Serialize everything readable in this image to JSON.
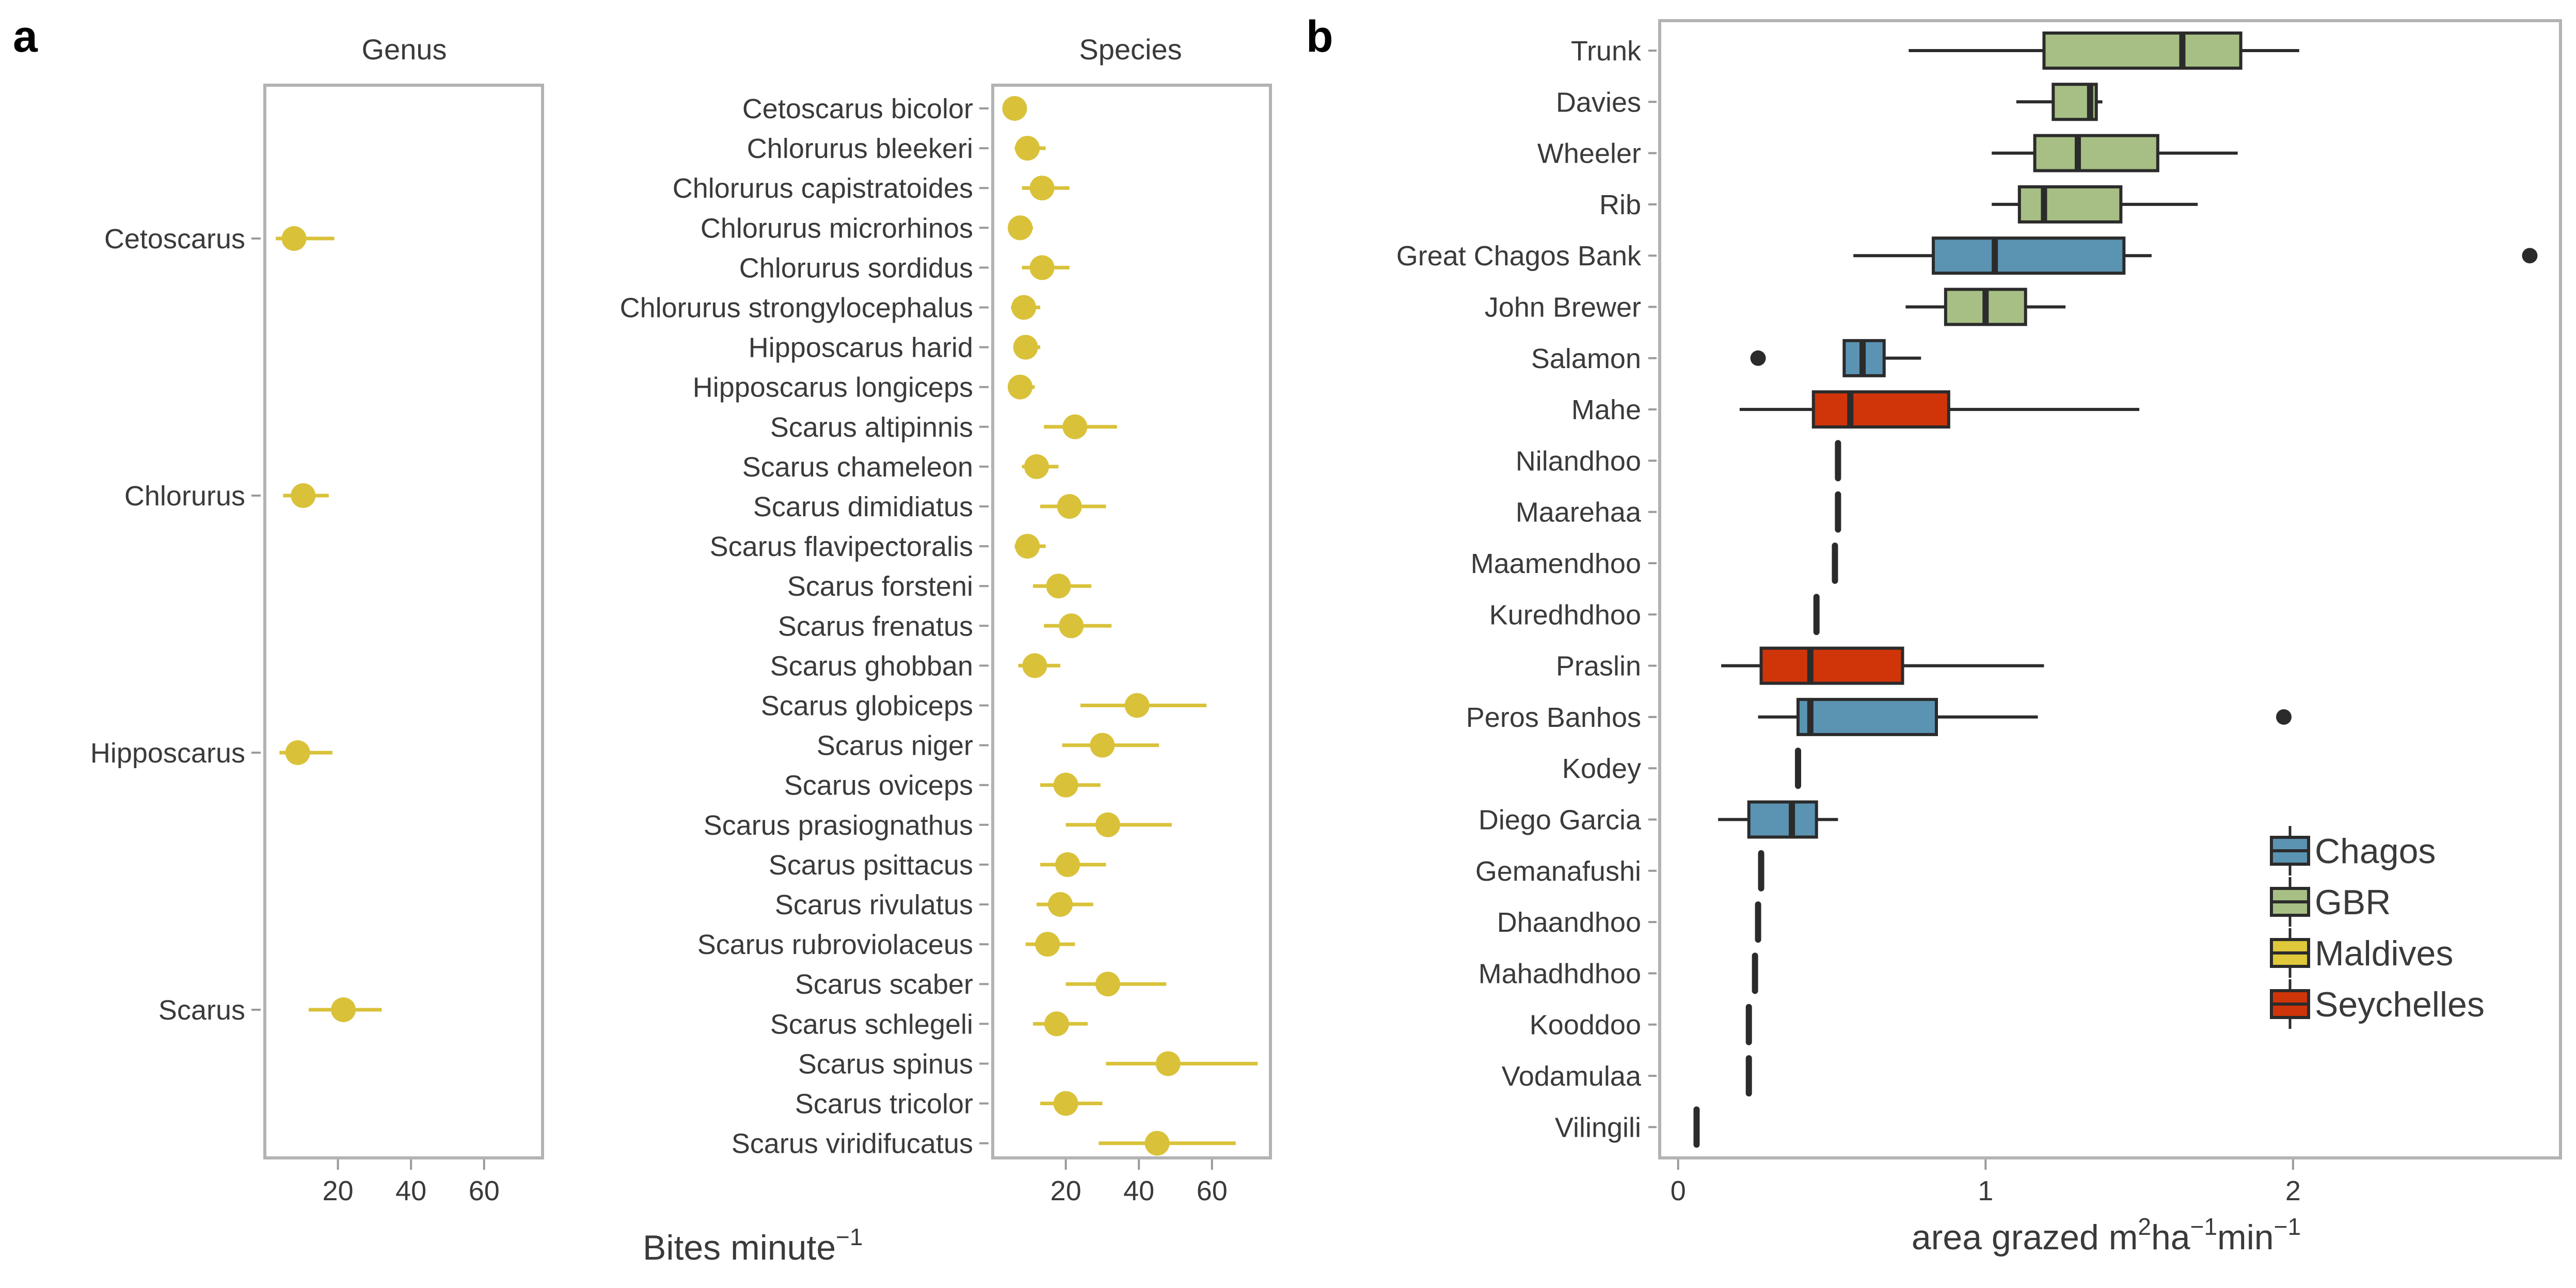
{
  "figure": {
    "panel_a_letter": "a",
    "panel_b_letter": "b",
    "shared_xlabel": {
      "main": "Bites minute",
      "sup": "−1"
    },
    "colors": {
      "dot": "#d9c23a",
      "frame": "#b3b3b3",
      "text": "#3a3a3a",
      "whisker": "#2b2b2b"
    }
  },
  "chart_data": [
    {
      "type": "scatter",
      "panel": "a",
      "title": "Genus",
      "xlabel": "",
      "ylabel": "",
      "x_ticks": [
        20,
        40,
        60
      ],
      "xlim": [
        0,
        76
      ],
      "point_color": "#d9c23a",
      "points": [
        {
          "label": "Cetoscarus",
          "mean": 8,
          "low": 3,
          "high": 19
        },
        {
          "label": "Chlorurus",
          "mean": 10.5,
          "low": 5,
          "high": 17.5
        },
        {
          "label": "Hipposcarus",
          "mean": 9,
          "low": 4,
          "high": 18.5
        },
        {
          "label": "Scarus",
          "mean": 21.5,
          "low": 12,
          "high": 32
        }
      ]
    },
    {
      "type": "scatter",
      "panel": "a",
      "title": "Species",
      "xlabel": "",
      "ylabel": "",
      "x_ticks": [
        20,
        40,
        60
      ],
      "xlim": [
        0,
        76
      ],
      "point_color": "#d9c23a",
      "points": [
        {
          "label": "Cetoscarus bicolor",
          "mean": 6,
          "low": 4,
          "high": 9
        },
        {
          "label": "Chlorurus bleekeri",
          "mean": 9.5,
          "low": 6,
          "high": 14.5
        },
        {
          "label": "Chlorurus capistratoides",
          "mean": 13.5,
          "low": 8,
          "high": 21
        },
        {
          "label": "Chlorurus microrhinos",
          "mean": 7.5,
          "low": 5,
          "high": 11
        },
        {
          "label": "Chlorurus sordidus",
          "mean": 13.5,
          "low": 8,
          "high": 21
        },
        {
          "label": "Chlorurus strongylocephalus",
          "mean": 8.5,
          "low": 5,
          "high": 13
        },
        {
          "label": "Hipposcarus harid",
          "mean": 9,
          "low": 6,
          "high": 13
        },
        {
          "label": "Hipposcarus longiceps",
          "mean": 7.5,
          "low": 5,
          "high": 11.5
        },
        {
          "label": "Scarus altipinnis",
          "mean": 22.5,
          "low": 14,
          "high": 34
        },
        {
          "label": "Scarus chameleon",
          "mean": 12,
          "low": 8,
          "high": 18
        },
        {
          "label": "Scarus dimidiatus",
          "mean": 21,
          "low": 13,
          "high": 31
        },
        {
          "label": "Scarus flavipectoralis",
          "mean": 9.5,
          "low": 6,
          "high": 14.5
        },
        {
          "label": "Scarus forsteni",
          "mean": 18,
          "low": 11,
          "high": 27
        },
        {
          "label": "Scarus frenatus",
          "mean": 21.5,
          "low": 14,
          "high": 32.5
        },
        {
          "label": "Scarus ghobban",
          "mean": 11.5,
          "low": 7,
          "high": 18.5
        },
        {
          "label": "Scarus globiceps",
          "mean": 39.5,
          "low": 24,
          "high": 58.5
        },
        {
          "label": "Scarus niger",
          "mean": 30,
          "low": 19,
          "high": 45.5
        },
        {
          "label": "Scarus oviceps",
          "mean": 20,
          "low": 13,
          "high": 29.5
        },
        {
          "label": "Scarus prasiognathus",
          "mean": 31.5,
          "low": 20,
          "high": 49
        },
        {
          "label": "Scarus psittacus",
          "mean": 20.5,
          "low": 13,
          "high": 31
        },
        {
          "label": "Scarus rivulatus",
          "mean": 18.5,
          "low": 12,
          "high": 27.5
        },
        {
          "label": "Scarus rubroviolaceus",
          "mean": 15,
          "low": 9,
          "high": 22.5
        },
        {
          "label": "Scarus scaber",
          "mean": 31.5,
          "low": 20,
          "high": 47.5
        },
        {
          "label": "Scarus schlegeli",
          "mean": 17.5,
          "low": 11,
          "high": 26
        },
        {
          "label": "Scarus spinus",
          "mean": 48,
          "low": 31,
          "high": 72.5
        },
        {
          "label": "Scarus tricolor",
          "mean": 20,
          "low": 13,
          "high": 30
        },
        {
          "label": "Scarus viridifucatus",
          "mean": 45,
          "low": 29,
          "high": 66.5
        }
      ]
    },
    {
      "type": "box",
      "panel": "b",
      "title": "",
      "xlabel": {
        "main": "area grazed m",
        "sup1": "2",
        "mid": "ha",
        "sup2": "−1",
        "end": "min",
        "sup3": "−1"
      },
      "ylabel": "",
      "x_ticks": [
        0,
        1,
        2
      ],
      "xlim": [
        -0.06,
        2.87
      ],
      "legend_position": "bottom-right",
      "legend": [
        {
          "name": "Chagos",
          "color": "#5b93b3"
        },
        {
          "name": "GBR",
          "color": "#a7bf84"
        },
        {
          "name": "Maldives",
          "color": "#dfc83a"
        },
        {
          "name": "Seychelles",
          "color": "#d03509"
        }
      ],
      "boxes": [
        {
          "site": "Trunk",
          "group": "GBR",
          "whisker_low": 0.75,
          "q1": 1.19,
          "median": 1.64,
          "q3": 1.83,
          "whisker_high": 2.02,
          "outliers": []
        },
        {
          "site": "Davies",
          "group": "GBR",
          "whisker_low": 1.1,
          "q1": 1.22,
          "median": 1.34,
          "q3": 1.36,
          "whisker_high": 1.38,
          "outliers": []
        },
        {
          "site": "Wheeler",
          "group": "GBR",
          "whisker_low": 1.02,
          "q1": 1.16,
          "median": 1.3,
          "q3": 1.56,
          "whisker_high": 1.82,
          "outliers": []
        },
        {
          "site": "Rib",
          "group": "GBR",
          "whisker_low": 1.02,
          "q1": 1.11,
          "median": 1.19,
          "q3": 1.44,
          "whisker_high": 1.69,
          "outliers": []
        },
        {
          "site": "Great Chagos Bank",
          "group": "Chagos",
          "whisker_low": 0.57,
          "q1": 0.83,
          "median": 1.03,
          "q3": 1.45,
          "whisker_high": 1.54,
          "outliers": [
            2.77
          ]
        },
        {
          "site": "John Brewer",
          "group": "GBR",
          "whisker_low": 0.74,
          "q1": 0.87,
          "median": 1.0,
          "q3": 1.13,
          "whisker_high": 1.26,
          "outliers": []
        },
        {
          "site": "Salamon",
          "group": "Chagos",
          "whisker_low": 0.54,
          "q1": 0.54,
          "median": 0.6,
          "q3": 0.67,
          "whisker_high": 0.79,
          "outliers": [
            0.26
          ]
        },
        {
          "site": "Mahe",
          "group": "Seychelles",
          "whisker_low": 0.2,
          "q1": 0.44,
          "median": 0.56,
          "q3": 0.88,
          "whisker_high": 1.5,
          "outliers": []
        },
        {
          "site": "Nilandhoo",
          "group": "Maldives",
          "whisker_low": 0.52,
          "q1": 0.52,
          "median": 0.52,
          "q3": 0.52,
          "whisker_high": 0.52,
          "outliers": []
        },
        {
          "site": "Maarehaa",
          "group": "Maldives",
          "whisker_low": 0.52,
          "q1": 0.52,
          "median": 0.52,
          "q3": 0.52,
          "whisker_high": 0.52,
          "outliers": []
        },
        {
          "site": "Maamendhoo",
          "group": "Maldives",
          "whisker_low": 0.51,
          "q1": 0.51,
          "median": 0.51,
          "q3": 0.51,
          "whisker_high": 0.51,
          "outliers": []
        },
        {
          "site": "Kuredhdhoo",
          "group": "Maldives",
          "whisker_low": 0.45,
          "q1": 0.45,
          "median": 0.45,
          "q3": 0.45,
          "whisker_high": 0.45,
          "outliers": []
        },
        {
          "site": "Praslin",
          "group": "Seychelles",
          "whisker_low": 0.14,
          "q1": 0.27,
          "median": 0.43,
          "q3": 0.73,
          "whisker_high": 1.19,
          "outliers": []
        },
        {
          "site": "Peros Banhos",
          "group": "Chagos",
          "whisker_low": 0.26,
          "q1": 0.39,
          "median": 0.43,
          "q3": 0.84,
          "whisker_high": 1.17,
          "outliers": [
            1.97
          ]
        },
        {
          "site": "Kodey",
          "group": "Maldives",
          "whisker_low": 0.39,
          "q1": 0.39,
          "median": 0.39,
          "q3": 0.39,
          "whisker_high": 0.39,
          "outliers": []
        },
        {
          "site": "Diego Garcia",
          "group": "Chagos",
          "whisker_low": 0.13,
          "q1": 0.23,
          "median": 0.37,
          "q3": 0.45,
          "whisker_high": 0.52,
          "outliers": []
        },
        {
          "site": "Gemanafushi",
          "group": "Maldives",
          "whisker_low": 0.27,
          "q1": 0.27,
          "median": 0.27,
          "q3": 0.27,
          "whisker_high": 0.27,
          "outliers": []
        },
        {
          "site": "Dhaandhoo",
          "group": "Maldives",
          "whisker_low": 0.26,
          "q1": 0.26,
          "median": 0.26,
          "q3": 0.26,
          "whisker_high": 0.26,
          "outliers": []
        },
        {
          "site": "Mahadhdhoo",
          "group": "Maldives",
          "whisker_low": 0.25,
          "q1": 0.25,
          "median": 0.25,
          "q3": 0.25,
          "whisker_high": 0.25,
          "outliers": []
        },
        {
          "site": "Kooddoo",
          "group": "Maldives",
          "whisker_low": 0.23,
          "q1": 0.23,
          "median": 0.23,
          "q3": 0.23,
          "whisker_high": 0.23,
          "outliers": []
        },
        {
          "site": "Vodamulaa",
          "group": "Maldives",
          "whisker_low": 0.23,
          "q1": 0.23,
          "median": 0.23,
          "q3": 0.23,
          "whisker_high": 0.23,
          "outliers": []
        },
        {
          "site": "Vilingili",
          "group": "Maldives",
          "whisker_low": 0.06,
          "q1": 0.06,
          "median": 0.06,
          "q3": 0.06,
          "whisker_high": 0.06,
          "outliers": []
        }
      ]
    }
  ]
}
